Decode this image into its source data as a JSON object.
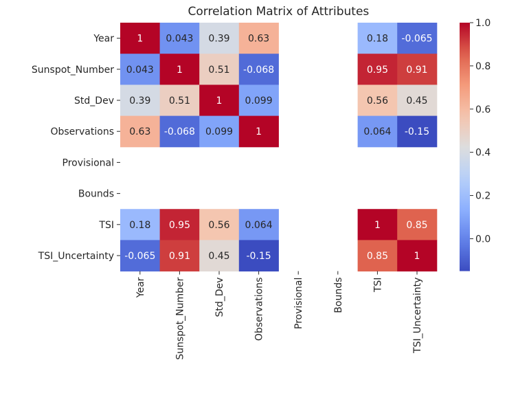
{
  "chart_data": {
    "type": "heatmap",
    "title": "Correlation Matrix of Attributes",
    "xlabel": "",
    "ylabel": "",
    "row_labels": [
      "Year",
      "Sunspot_Number",
      "Std_Dev",
      "Observations",
      "Provisional",
      "Bounds",
      "TSI",
      "TSI_Uncertainty"
    ],
    "col_labels": [
      "Year",
      "Sunspot_Number",
      "Std_Dev",
      "Observations",
      "Provisional",
      "Bounds",
      "TSI",
      "TSI_Uncertainty"
    ],
    "values": [
      [
        1,
        0.043,
        0.39,
        0.63,
        null,
        null,
        0.18,
        -0.065
      ],
      [
        0.043,
        1,
        0.51,
        -0.068,
        null,
        null,
        0.95,
        0.91
      ],
      [
        0.39,
        0.51,
        1,
        0.099,
        null,
        null,
        0.56,
        0.45
      ],
      [
        0.63,
        -0.068,
        0.099,
        1,
        null,
        null,
        0.064,
        -0.15
      ],
      [
        null,
        null,
        null,
        null,
        null,
        null,
        null,
        null
      ],
      [
        null,
        null,
        null,
        null,
        null,
        null,
        null,
        null
      ],
      [
        0.18,
        0.95,
        0.56,
        0.064,
        null,
        null,
        1,
        0.85
      ],
      [
        -0.065,
        0.91,
        0.45,
        -0.15,
        null,
        null,
        0.85,
        1
      ]
    ],
    "cell_text": [
      [
        "1",
        "0.043",
        "0.39",
        "0.63",
        "",
        "",
        "0.18",
        "-0.065"
      ],
      [
        "0.043",
        "1",
        "0.51",
        "-0.068",
        "",
        "",
        "0.95",
        "0.91"
      ],
      [
        "0.39",
        "0.51",
        "1",
        "0.099",
        "",
        "",
        "0.56",
        "0.45"
      ],
      [
        "0.63",
        "-0.068",
        "0.099",
        "1",
        "",
        "",
        "0.064",
        "-0.15"
      ],
      [
        "",
        "",
        "",
        "",
        "",
        "",
        "",
        ""
      ],
      [
        "",
        "",
        "",
        "",
        "",
        "",
        "",
        ""
      ],
      [
        "0.18",
        "0.95",
        "0.56",
        "0.064",
        "",
        "",
        "1",
        "0.85"
      ],
      [
        "-0.065",
        "0.91",
        "0.45",
        "-0.15",
        "",
        "",
        "0.85",
        "1"
      ]
    ],
    "colormap": "coolwarm",
    "colorbar": {
      "range": [
        -0.15,
        1.0
      ],
      "ticks": [
        0.0,
        0.2,
        0.4,
        0.6,
        0.8,
        1.0
      ],
      "tick_labels": [
        "0.0",
        "0.2",
        "0.4",
        "0.6",
        "0.8",
        "1.0"
      ]
    },
    "annotations": true,
    "grid": false
  }
}
